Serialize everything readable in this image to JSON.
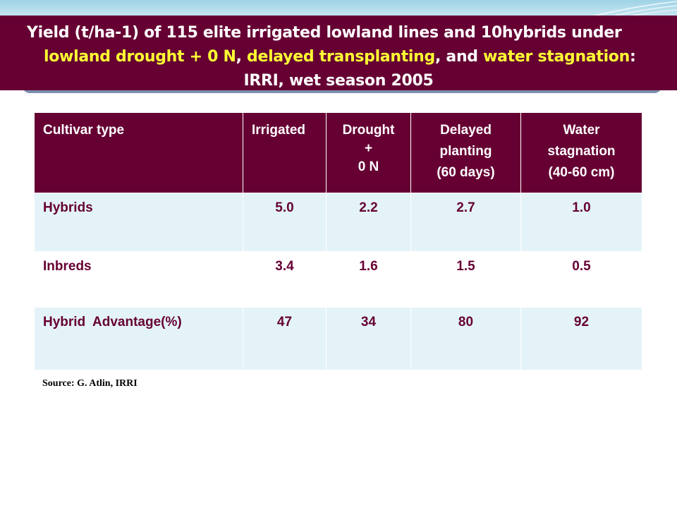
{
  "title": {
    "line1": "Yield (t/ha-1) of 115 elite irrigated lowland lines and 10hybrids under",
    "line2_hl1": "lowland drought + 0 N",
    "line2_sep1": ", ",
    "line2_hl2": "delayed transplanting",
    "line2_sep2": ", and ",
    "line2_hl3": "water stagnation",
    "line2_end": ":",
    "line3": "IRRI, wet season 2005"
  },
  "table": {
    "headers": [
      [
        "Cultivar type"
      ],
      [
        "Irrigated"
      ],
      [
        "Drought",
        "+",
        "0 N"
      ],
      [
        "Delayed",
        "planting",
        "(60 days)"
      ],
      [
        "Water",
        "stagnation",
        "(40-60 cm)"
      ]
    ],
    "rows": [
      [
        "Hybrids",
        "5.0",
        "2.2",
        "2.7",
        "1.0"
      ],
      [
        "Inbreds",
        "3.4",
        "1.6",
        "1.5",
        "0.5"
      ],
      [
        "Hybrid  Advantage(%)",
        "47",
        "34",
        "80",
        "92"
      ]
    ]
  },
  "source": "Source: G. Atlin, IRRI",
  "colors": {
    "title_bg": "#660033",
    "highlight": "#ffff33",
    "cell_text": "#660033",
    "row_light": "#e4f3f8"
  }
}
